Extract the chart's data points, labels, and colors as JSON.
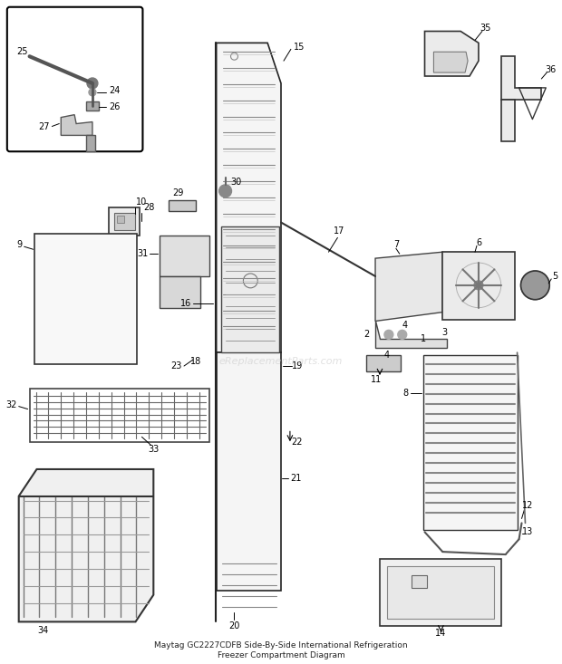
{
  "title": "Maytag GC2227CDFB Side-By-Side International Refrigeration\nFreezer Compartment Diagram",
  "bg_color": "#ffffff",
  "line_color": "#000000",
  "watermark": "eReplacementParts.com",
  "fig_w": 6.2,
  "fig_h": 7.33,
  "dpi": 100
}
